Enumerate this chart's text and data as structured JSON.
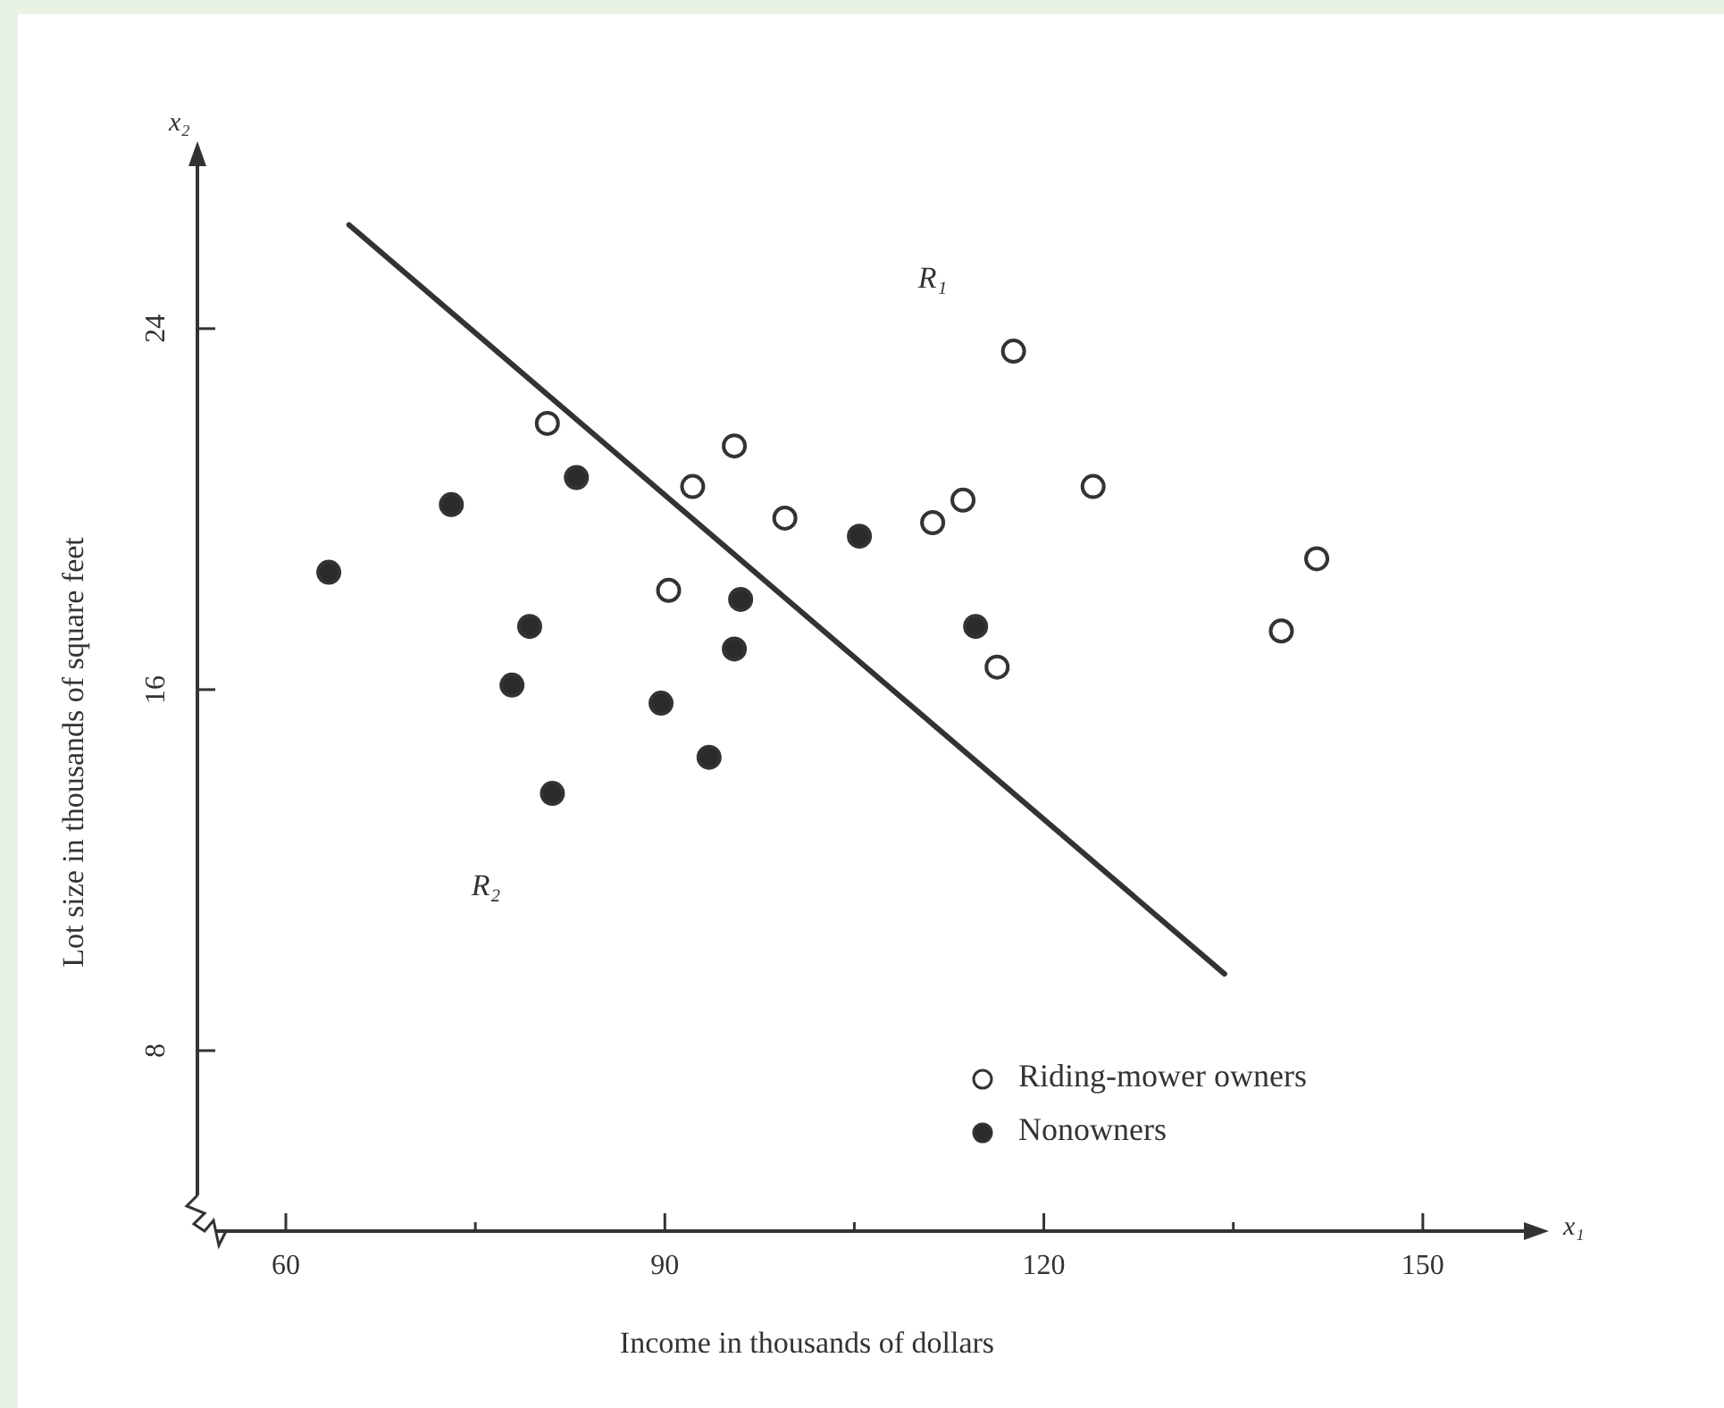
{
  "chart_data": {
    "type": "scatter",
    "xlabel": "Income in thousands of dollars",
    "ylabel": "Lot size in thousands of square feet",
    "xlim": [
      53,
      158
    ],
    "ylim": [
      4,
      27.6
    ],
    "xticks": [
      60,
      {
        "value": 75,
        "label": null
      },
      90,
      {
        "value": 105,
        "label": null
      },
      120,
      {
        "value": 135,
        "label": null
      },
      150
    ],
    "yticks": [
      8,
      16,
      24
    ],
    "grid": false,
    "legend": "bottom right",
    "annotations": [
      "x₁",
      "x₂",
      "R₁",
      "R₂"
    ],
    "series": [
      {
        "name": "Riding-mower owners",
        "color": "#ffffff",
        "marker": "circle",
        "x": [
          80.7,
          95.5,
          92.2,
          99.5,
          111.2,
          113.6,
          90.3,
          117.6,
          123.9,
          141.6,
          138.8,
          116.3
        ],
        "values": [
          21.9,
          21.4,
          20.5,
          19.8,
          19.7,
          20.2,
          18.2,
          23.5,
          20.5,
          18.9,
          17.3,
          16.5
        ]
      },
      {
        "name": "Nonowners",
        "color": "#2b2b2b",
        "marker": "circle",
        "x": [
          83.0,
          73.1,
          63.4,
          96.0,
          79.3,
          95.5,
          77.9,
          89.7,
          93.5,
          81.1,
          105.4,
          114.6
        ],
        "values": [
          20.7,
          20.1,
          18.6,
          18.0,
          17.4,
          16.9,
          16.1,
          15.7,
          14.5,
          13.7,
          19.4,
          17.4
        ]
      },
      {
        "type": "line",
        "color": "#333333",
        "marker": "none",
        "x": [
          65.0,
          134.3
        ],
        "values": [
          26.3,
          9.7
        ]
      }
    ]
  }
}
